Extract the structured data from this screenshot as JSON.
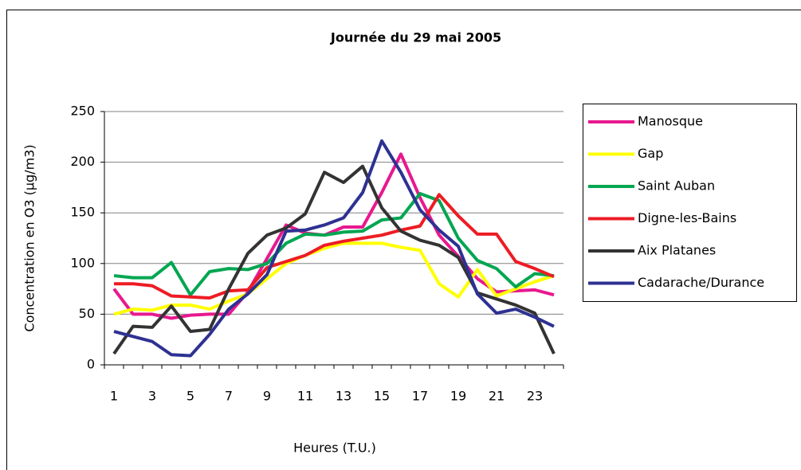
{
  "chart_data": {
    "type": "line",
    "title": "Journée du 29 mai 2005",
    "x_label": "Heures (T.U.)",
    "y_label": "Concentration en O3 (µg/m3)",
    "categories": [
      1,
      null,
      3,
      null,
      5,
      null,
      7,
      null,
      9,
      null,
      11,
      null,
      13,
      null,
      15,
      null,
      17,
      null,
      19,
      null,
      21,
      null,
      23,
      null
    ],
    "ylim": [
      0,
      250
    ],
    "yticks": [
      0,
      50,
      100,
      150,
      200,
      250
    ],
    "grid": true,
    "legend": "right",
    "series": [
      {
        "name": "Manosque",
        "color": "#e8188f",
        "values": [
          75,
          50,
          50,
          46,
          49,
          50,
          50,
          72,
          105,
          138,
          130,
          128,
          136,
          136,
          170,
          208,
          165,
          128,
          107,
          85,
          72,
          73,
          74,
          69
        ]
      },
      {
        "name": "Gap",
        "color": "#ffff00",
        "values": [
          50,
          55,
          54,
          59,
          59,
          55,
          63,
          70,
          85,
          100,
          108,
          115,
          120,
          120,
          120,
          116,
          113,
          80,
          67,
          94,
          68,
          75,
          82,
          88
        ]
      },
      {
        "name": "Saint Auban",
        "color": "#00a651",
        "values": [
          88,
          86,
          86,
          101,
          69,
          92,
          95,
          94,
          100,
          120,
          129,
          128,
          131,
          132,
          143,
          145,
          169,
          162,
          125,
          103,
          95,
          77,
          90,
          88
        ]
      },
      {
        "name": "Digne-les-Bains",
        "color": "#ed1c24",
        "values": [
          80,
          80,
          78,
          68,
          67,
          66,
          73,
          74,
          96,
          102,
          108,
          118,
          122,
          125,
          128,
          133,
          137,
          168,
          147,
          129,
          129,
          102,
          95,
          87
        ]
      },
      {
        "name": "Aix Platanes",
        "color": "#333333",
        "values": [
          11,
          38,
          37,
          58,
          33,
          35,
          75,
          110,
          128,
          135,
          149,
          190,
          180,
          196,
          155,
          132,
          123,
          118,
          106,
          71,
          65,
          59,
          51,
          11
        ]
      },
      {
        "name": "Cadarache/Durance",
        "color": "#2e3192",
        "values": [
          33,
          28,
          23,
          10,
          9,
          30,
          55,
          70,
          89,
          132,
          133,
          138,
          145,
          170,
          221,
          190,
          153,
          133,
          117,
          70,
          51,
          55,
          47,
          38
        ]
      }
    ]
  }
}
